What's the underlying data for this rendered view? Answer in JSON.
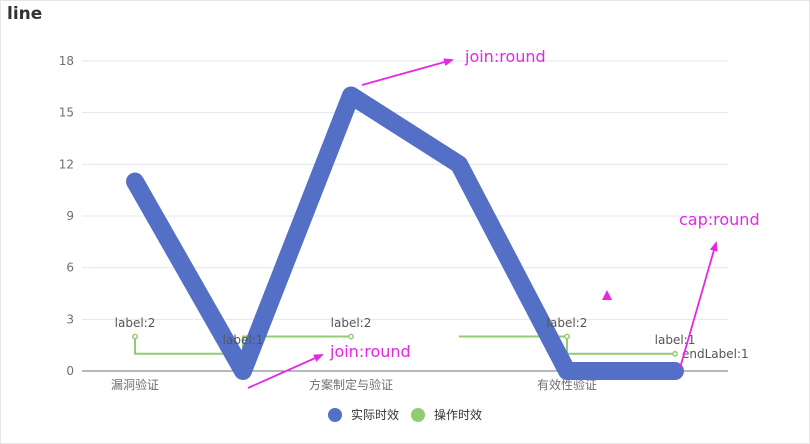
{
  "chart_data": {
    "type": "line",
    "title": "line",
    "categories": [
      "漏洞验证",
      "",
      "方案制定与验证",
      "",
      "有效性验证",
      ""
    ],
    "x_tick_labels": [
      "漏洞验证",
      "方案制定与验证",
      "有效性验证"
    ],
    "ylim": [
      0,
      18
    ],
    "yticks": [
      "0",
      "3",
      "6",
      "9",
      "12",
      "15",
      "18"
    ],
    "grid": true,
    "legend_position": "bottom",
    "series": [
      {
        "name": "实际时效",
        "values": [
          11,
          0,
          16,
          12,
          0,
          0
        ]
      },
      {
        "name": "操作时效",
        "values": [
          2,
          1,
          2,
          null,
          2,
          1
        ],
        "step": true
      }
    ],
    "point_labels": [
      "label:2",
      "label:1",
      "label:2",
      "label:2",
      "label:1"
    ],
    "end_label": "endLabel:1",
    "annotations": [
      "join:round",
      "join:round",
      "cap:round"
    ]
  },
  "colors": {
    "series1": "#5470c6",
    "series2": "#91cc75",
    "annotation": "#e726e6",
    "grid": "#e0e6f1",
    "axis_text": "#6e7079"
  }
}
